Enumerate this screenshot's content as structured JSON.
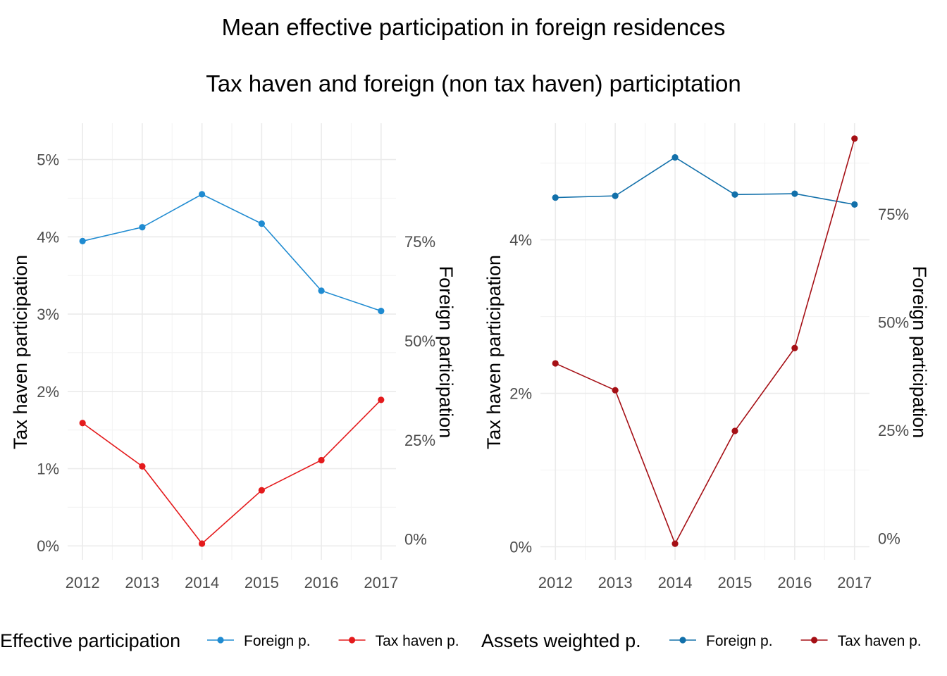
{
  "title": "Mean effective participation in foreign residences",
  "subtitle": "Tax haven and foreign (non tax haven) participtation",
  "colors": {
    "grid_major": "#ebebeb",
    "grid_minor": "#f4f4f4",
    "tick_text": "#4d4d4d"
  },
  "chart_data": [
    {
      "type": "line",
      "x": [
        2012,
        2013,
        2014,
        2015,
        2016,
        2017
      ],
      "xlim": [
        2011.75,
        2017.25
      ],
      "xticks": [
        "2012",
        "2013",
        "2014",
        "2015",
        "2016",
        "2017"
      ],
      "ylabel": "Tax haven participation",
      "y2label": "Foreign participation",
      "ylim": [
        -0.0018,
        0.0547
      ],
      "yticks": [
        "0%",
        "1%",
        "2%",
        "3%",
        "4%",
        "5%"
      ],
      "ytick_values": [
        0,
        0.01,
        0.02,
        0.03,
        0.04,
        0.05
      ],
      "y2lim": [
        -0.052,
        1.048
      ],
      "y2ticks": [
        "0%",
        "25%",
        "50%",
        "75%"
      ],
      "y2tick_values": [
        0,
        0.25,
        0.5,
        0.75
      ],
      "grid": true,
      "legend_title": "Effective participation",
      "legend_position": "bottom",
      "series": [
        {
          "name": "Foreign p.",
          "axis": "right",
          "color": "#1f8bd1",
          "values": [
            0.751,
            0.786,
            0.869,
            0.795,
            0.626,
            0.575
          ]
        },
        {
          "name": "Tax haven p.",
          "axis": "left",
          "color": "#e41a1c",
          "values": [
            0.0159,
            0.0103,
            0.0003,
            0.0072,
            0.0111,
            0.0189
          ]
        }
      ]
    },
    {
      "type": "line",
      "x": [
        2012,
        2013,
        2014,
        2015,
        2016,
        2017
      ],
      "xlim": [
        2011.75,
        2017.25
      ],
      "xticks": [
        "2012",
        "2013",
        "2014",
        "2015",
        "2016",
        "2017"
      ],
      "ylabel": "Tax haven participation",
      "y2label": "Foreign participation",
      "ylim": [
        -0.0017,
        0.0552
      ],
      "yticks": [
        "0%",
        "2%",
        "4%"
      ],
      "ytick_values": [
        0,
        0.02,
        0.04
      ],
      "y2lim": [
        -0.05,
        0.96
      ],
      "y2ticks": [
        "0%",
        "25%",
        "50%",
        "75%"
      ],
      "y2tick_values": [
        0,
        0.25,
        0.5,
        0.75
      ],
      "grid": true,
      "legend_title": "Assets weighted p.",
      "legend_position": "bottom",
      "series": [
        {
          "name": "Foreign p.",
          "axis": "right",
          "color": "#1270aa",
          "values": [
            0.788,
            0.792,
            0.881,
            0.795,
            0.797,
            0.772
          ]
        },
        {
          "name": "Tax haven p.",
          "axis": "left",
          "color": "#a50f15",
          "values": [
            0.0239,
            0.0204,
            0.0004,
            0.0151,
            0.0259,
            0.0532
          ]
        }
      ]
    }
  ]
}
